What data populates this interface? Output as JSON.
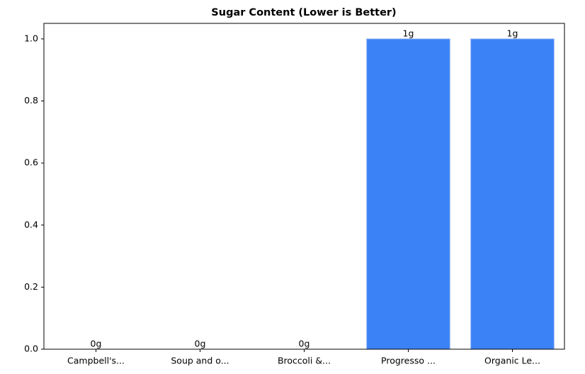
{
  "chart_data": {
    "type": "bar",
    "title": "Sugar Content (Lower is Better)",
    "categories": [
      "Campbell's...",
      "Soup and o...",
      "Broccoli &...",
      "Progresso ...",
      "Organic Le..."
    ],
    "values": [
      0,
      0,
      0,
      1,
      1
    ],
    "value_labels": [
      "0g",
      "0g",
      "0g",
      "1g",
      "1g"
    ],
    "color": "#3b82f6",
    "ylim": [
      0,
      1.05
    ],
    "yticks": [
      {
        "value": 0,
        "label": "0.0"
      },
      0.2,
      0.4,
      0.6,
      0.8,
      {
        "value": 1,
        "label": "1.0"
      }
    ],
    "grid": false
  }
}
